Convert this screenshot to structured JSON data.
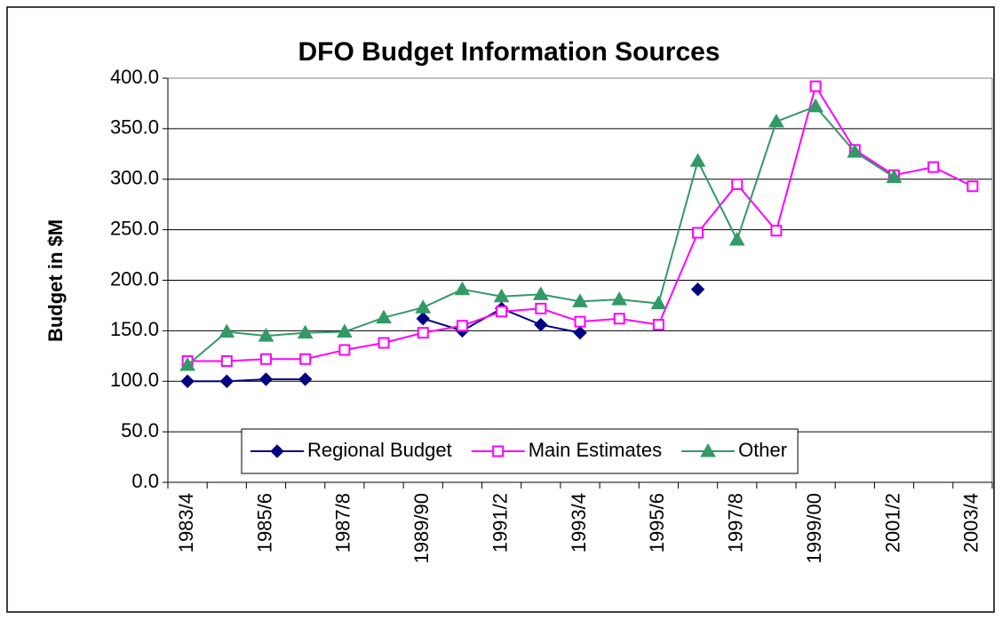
{
  "chart_data": {
    "type": "line",
    "title": "DFO Budget Information Sources",
    "y_label": "Budget in $M",
    "categories": [
      "1983/4",
      null,
      "1985/6",
      null,
      "1987/8",
      null,
      "1989/90",
      null,
      "1991/2",
      null,
      "1993/4",
      null,
      "1995/6",
      null,
      "1997/8",
      null,
      "1999/00",
      null,
      "2001/2",
      null,
      "2003/4"
    ],
    "series": [
      {
        "name": "Regional Budget",
        "color": "#000080",
        "marker": "diamond",
        "values": [
          100,
          100,
          102,
          102,
          null,
          null,
          162,
          150,
          172,
          156,
          148,
          null,
          null,
          191,
          null,
          null,
          null,
          null,
          null,
          null,
          null
        ]
      },
      {
        "name": "Main Estimates",
        "color": "#ff00ff",
        "marker": "square",
        "values": [
          120,
          120,
          122,
          122,
          131,
          138,
          148,
          155,
          169,
          172,
          159,
          162,
          156,
          247,
          295,
          249,
          392,
          329,
          304,
          312,
          293
        ]
      },
      {
        "name": "Other",
        "color": "#339966",
        "marker": "triangle",
        "values": [
          116,
          149,
          145,
          148,
          149,
          163,
          173,
          191,
          184,
          186,
          179,
          181,
          177,
          318,
          240,
          357,
          372,
          327,
          302,
          null,
          null
        ]
      }
    ],
    "ylim": [
      0,
      400
    ],
    "yticks": [
      {
        "value": 0,
        "label": "0.0"
      },
      {
        "value": 50,
        "label": "50.0"
      },
      {
        "value": 100,
        "label": "100.0"
      },
      {
        "value": 150,
        "label": "150.0"
      },
      {
        "value": 200,
        "label": "200.0"
      },
      {
        "value": 250,
        "label": "250.0"
      },
      {
        "value": 300,
        "label": "300.0"
      },
      {
        "value": 350,
        "label": "350.0"
      },
      {
        "value": 400,
        "label": "400.0"
      }
    ],
    "grid": true,
    "legend": "bottom"
  }
}
